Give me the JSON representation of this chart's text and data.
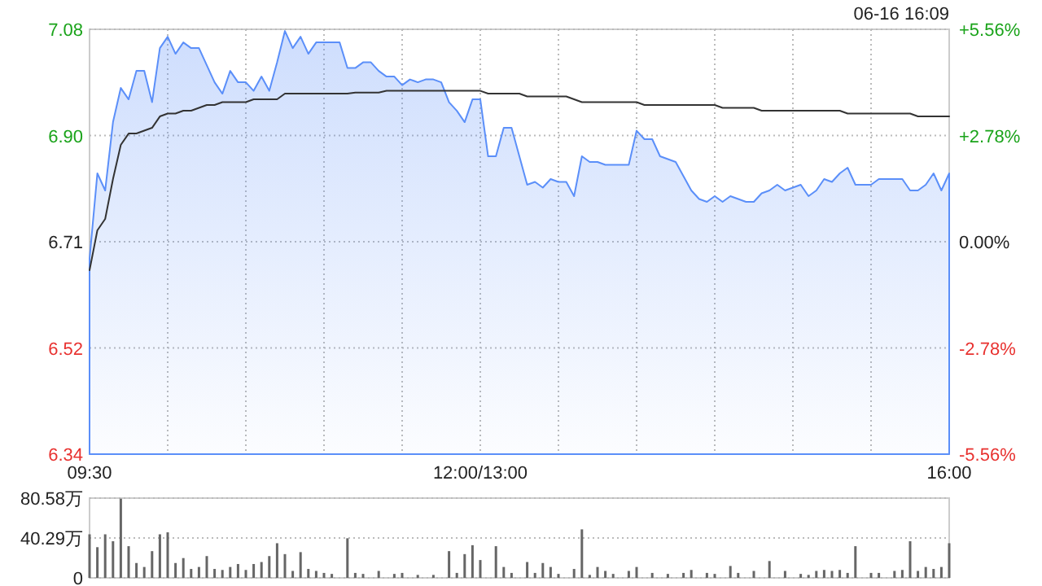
{
  "chart_data": [
    {
      "type": "area",
      "annotations": [
        "06-16 16:09"
      ],
      "ylim": [
        6.337,
        7.083
      ],
      "y2lim": [
        -5.56,
        5.56
      ],
      "grid": true,
      "categories": [
        "09:30",
        null,
        null,
        null,
        null,
        null,
        null,
        null,
        null,
        null,
        null,
        null,
        null,
        null,
        null,
        null,
        null,
        null,
        null,
        null,
        null,
        null,
        null,
        null,
        null,
        null,
        null,
        null,
        null,
        null,
        null,
        null,
        null,
        null,
        null,
        null,
        null,
        null,
        null,
        null,
        null,
        null,
        null,
        null,
        null,
        null,
        null,
        null,
        null,
        null,
        "12:00/13:00",
        null,
        null,
        null,
        null,
        null,
        null,
        null,
        null,
        null,
        null,
        null,
        null,
        null,
        null,
        null,
        null,
        null,
        null,
        null,
        null,
        null,
        null,
        null,
        null,
        null,
        null,
        null,
        null,
        null,
        null,
        null,
        null,
        null,
        null,
        null,
        null,
        null,
        null,
        null,
        null,
        null,
        null,
        null,
        null,
        null,
        null,
        null,
        null,
        null,
        null,
        null,
        null,
        null,
        null,
        null,
        null,
        null,
        null,
        null,
        "16:00"
      ],
      "yticks": [
        {
          "value": 6.337,
          "label": "6.34"
        },
        {
          "value": 6.5235,
          "label": "6.52"
        },
        6.71,
        {
          "value": 6.8965,
          "label": "6.90"
        },
        {
          "value": 7.083,
          "label": "7.08"
        }
      ],
      "y2ticks": [
        {
          "value": -5.56,
          "label": "-5.56%"
        },
        {
          "value": -2.78,
          "label": "-2.78%"
        },
        {
          "value": 0,
          "label": "0.00%"
        },
        {
          "value": 2.78,
          "label": "+2.78%"
        },
        {
          "value": 5.56,
          "label": "+5.56%"
        }
      ],
      "series": [
        {
          "type": "area",
          "color": "#5b8ff9",
          "values": [
            6.68,
            6.83,
            6.8,
            6.92,
            6.98,
            6.96,
            7.01,
            7.01,
            6.955,
            7.05,
            7.07,
            7.04,
            7.06,
            7.05,
            7.05,
            7.02,
            6.99,
            6.97,
            7.01,
            6.99,
            6.99,
            6.975,
            7.0,
            6.975,
            7.025,
            7.08,
            7.05,
            7.07,
            7.04,
            7.06,
            7.06,
            7.06,
            7.06,
            7.015,
            7.015,
            7.025,
            7.025,
            7.01,
            7.0,
            7.0,
            6.985,
            6.995,
            6.99,
            6.995,
            6.995,
            6.99,
            6.955,
            6.94,
            6.92,
            6.96,
            6.96,
            6.86,
            6.86,
            6.91,
            6.91,
            6.86,
            6.81,
            6.815,
            6.805,
            6.82,
            6.815,
            6.815,
            6.79,
            6.86,
            6.85,
            6.85,
            6.845,
            6.845,
            6.845,
            6.845,
            6.905,
            6.89,
            6.89,
            6.86,
            6.855,
            6.85,
            6.825,
            6.8,
            6.785,
            6.78,
            6.79,
            6.78,
            6.79,
            6.785,
            6.78,
            6.78,
            6.795,
            6.8,
            6.81,
            6.8,
            6.805,
            6.81,
            6.79,
            6.8,
            6.82,
            6.815,
            6.83,
            6.84,
            6.81,
            6.81,
            6.81,
            6.82,
            6.82,
            6.82,
            6.82,
            6.8,
            6.8,
            6.81,
            6.83,
            6.8,
            6.83
          ]
        },
        {
          "type": "line",
          "color": "#333333",
          "values": [
            6.66,
            6.73,
            6.75,
            6.82,
            6.88,
            6.9,
            6.9,
            6.905,
            6.91,
            6.93,
            6.935,
            6.935,
            6.94,
            6.94,
            6.945,
            6.95,
            6.95,
            6.955,
            6.955,
            6.955,
            6.955,
            6.96,
            6.96,
            6.96,
            6.96,
            6.97,
            6.97,
            6.97,
            6.97,
            6.97,
            6.97,
            6.97,
            6.97,
            6.97,
            6.972,
            6.972,
            6.972,
            6.972,
            6.975,
            6.975,
            6.975,
            6.975,
            6.975,
            6.975,
            6.975,
            6.975,
            6.975,
            6.975,
            6.975,
            6.975,
            6.975,
            6.97,
            6.97,
            6.97,
            6.97,
            6.97,
            6.965,
            6.965,
            6.965,
            6.965,
            6.965,
            6.965,
            6.96,
            6.955,
            6.955,
            6.955,
            6.955,
            6.955,
            6.955,
            6.955,
            6.955,
            6.95,
            6.95,
            6.95,
            6.95,
            6.95,
            6.95,
            6.95,
            6.95,
            6.95,
            6.95,
            6.945,
            6.945,
            6.945,
            6.945,
            6.945,
            6.94,
            6.94,
            6.94,
            6.94,
            6.94,
            6.94,
            6.94,
            6.94,
            6.94,
            6.94,
            6.94,
            6.935,
            6.935,
            6.935,
            6.935,
            6.935,
            6.935,
            6.935,
            6.935,
            6.935,
            6.93,
            6.93,
            6.93,
            6.93,
            6.93
          ]
        }
      ]
    },
    {
      "type": "bar",
      "color": "#666666",
      "ylim": [
        0,
        80.58
      ],
      "grid": "y",
      "tick_labels": "y",
      "yticks": [
        0,
        {
          "value": 40.29,
          "label": "40.29万"
        },
        {
          "value": 80.58,
          "label": "80.58万"
        }
      ],
      "values": [
        44,
        31,
        44,
        37,
        80,
        32,
        15,
        11,
        27,
        44,
        46,
        15,
        20,
        9,
        11,
        22,
        9,
        8,
        11,
        14,
        8,
        14,
        16,
        22,
        35,
        24,
        7,
        26,
        9,
        7,
        5,
        4,
        null,
        40,
        5,
        4,
        null,
        7,
        null,
        4,
        5,
        null,
        3,
        null,
        3,
        null,
        27,
        5,
        24,
        33,
        18,
        null,
        32,
        11,
        5,
        null,
        16,
        5,
        15,
        11,
        4,
        null,
        9,
        49,
        3,
        11,
        7,
        4,
        null,
        7,
        11,
        null,
        5,
        null,
        4,
        null,
        5,
        8,
        null,
        5,
        4,
        null,
        12,
        5,
        null,
        7,
        null,
        17,
        null,
        7,
        null,
        4,
        3,
        7,
        8,
        7,
        8,
        5,
        32,
        null,
        5,
        5,
        null,
        7,
        8,
        37,
        7,
        11,
        9,
        11,
        35
      ]
    }
  ]
}
